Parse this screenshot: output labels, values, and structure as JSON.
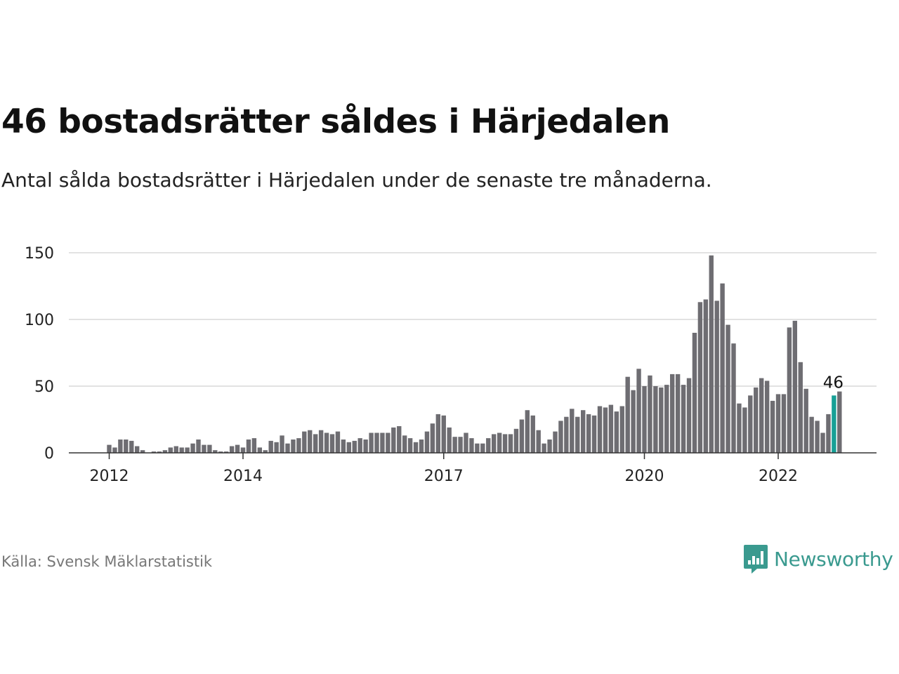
{
  "title": "46 bostadsrätter såldes i Härjedalen",
  "subtitle": "Antal sålda bostadsrätter i Härjedalen under de senaste tre månaderna.",
  "source": "Källa: Svensk Mäklarstatistik",
  "brand": {
    "name": "Newsworthy",
    "color": "#3a9a8f",
    "icon": "bar-chart-speech-bubble-icon"
  },
  "chart_data": {
    "type": "bar",
    "title": "46 bostadsrätter såldes i Härjedalen",
    "subtitle": "Antal sålda bostadsrätter i Härjedalen under de senaste tre månaderna.",
    "xlabel": "",
    "ylabel": "",
    "ylim": [
      0,
      150
    ],
    "yticks": [
      0,
      50,
      100,
      150
    ],
    "grid": true,
    "legend": "none",
    "bar_color": "#6e6d72",
    "highlight_color": "#16a096",
    "highlight_index": 137,
    "highlight_label": "46",
    "xtick_labels": [
      {
        "label": "2012",
        "index": 7
      },
      {
        "label": "2014",
        "index": 31
      },
      {
        "label": "2017",
        "index": 67
      },
      {
        "label": "2020",
        "index": 103
      },
      {
        "label": "2022",
        "index": 127
      }
    ],
    "values": [
      0,
      0,
      0,
      0,
      0,
      0,
      0,
      6,
      4,
      10,
      10,
      9,
      5,
      2,
      0,
      1,
      1,
      2,
      4,
      5,
      4,
      4,
      7,
      10,
      6,
      6,
      2,
      1,
      1,
      5,
      6,
      4,
      10,
      11,
      4,
      2,
      9,
      8,
      13,
      7,
      10,
      11,
      16,
      17,
      14,
      17,
      15,
      14,
      16,
      10,
      8,
      9,
      11,
      10,
      15,
      15,
      15,
      15,
      19,
      20,
      13,
      11,
      8,
      10,
      16,
      22,
      29,
      28,
      19,
      12,
      12,
      15,
      11,
      7,
      7,
      11,
      14,
      15,
      14,
      14,
      18,
      25,
      32,
      28,
      17,
      7,
      10,
      16,
      24,
      27,
      33,
      27,
      32,
      29,
      28,
      35,
      34,
      36,
      31,
      35,
      57,
      47,
      63,
      50,
      58,
      50,
      49,
      51,
      59,
      59,
      51,
      56,
      90,
      113,
      115,
      148,
      114,
      127,
      96,
      82,
      37,
      34,
      43,
      49,
      56,
      54,
      39,
      44,
      44,
      94,
      99,
      68,
      48,
      27,
      24,
      15,
      29,
      43,
      46
    ]
  }
}
